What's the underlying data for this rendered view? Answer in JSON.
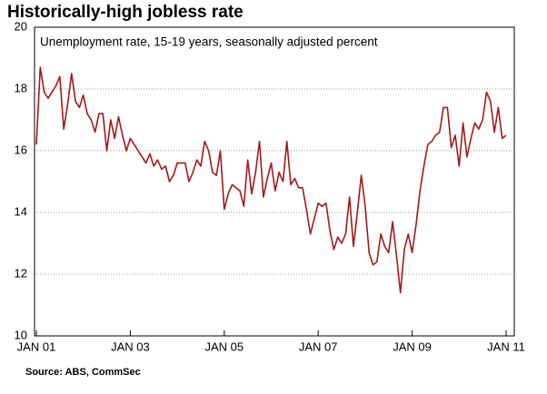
{
  "chart_data": {
    "type": "line",
    "title": "Historically-high jobless rate",
    "subtitle": "Unemployment rate, 15-19 years, seasonally adjusted percent",
    "source": "Source: ABS, CommSec",
    "x": [
      0,
      1,
      2,
      3,
      4,
      5,
      6,
      7,
      8,
      9,
      10,
      11,
      12,
      13,
      14,
      15,
      16,
      17,
      18,
      19,
      20,
      21,
      22,
      23,
      24,
      25,
      26,
      27,
      28,
      29,
      30,
      31,
      32,
      33,
      34,
      35,
      36,
      37,
      38,
      39,
      40,
      41,
      42,
      43,
      44,
      45,
      46,
      47,
      48,
      49,
      50,
      51,
      52,
      53,
      54,
      55,
      56,
      57,
      58,
      59,
      60,
      61,
      62,
      63,
      64,
      65,
      66,
      67,
      68,
      69,
      70,
      71,
      72,
      73,
      74,
      75,
      76,
      77,
      78,
      79,
      80,
      81,
      82,
      83,
      84,
      85,
      86,
      87,
      88,
      89,
      90,
      91,
      92,
      93,
      94,
      95,
      96,
      97,
      98,
      99,
      100,
      101,
      102,
      103,
      104,
      105,
      106,
      107,
      108,
      109,
      110,
      111,
      112,
      113,
      114,
      115,
      116,
      117,
      118,
      119,
      120
    ],
    "series": [
      {
        "name": "Unemployment rate, 15-19 years",
        "color": "#a3191c",
        "values": [
          16.2,
          18.7,
          17.9,
          17.7,
          17.9,
          18.1,
          18.4,
          16.7,
          17.5,
          18.5,
          17.6,
          17.4,
          17.8,
          17.2,
          17.0,
          16.6,
          17.2,
          17.2,
          16.0,
          17.0,
          16.4,
          17.1,
          16.5,
          16.0,
          16.4,
          16.2,
          16.0,
          15.8,
          15.6,
          15.9,
          15.5,
          15.7,
          15.4,
          15.5,
          15.0,
          15.2,
          15.6,
          15.6,
          15.6,
          15.0,
          15.3,
          15.7,
          15.5,
          16.3,
          16.0,
          15.3,
          15.2,
          16.0,
          14.1,
          14.6,
          14.9,
          14.8,
          14.7,
          14.2,
          15.7,
          14.6,
          15.3,
          16.3,
          14.5,
          15.1,
          15.6,
          14.7,
          15.3,
          15.0,
          16.3,
          14.9,
          15.1,
          14.8,
          14.8,
          14.1,
          13.3,
          13.8,
          14.3,
          14.2,
          14.3,
          13.4,
          12.8,
          13.2,
          13.0,
          13.3,
          14.5,
          12.9,
          14.0,
          15.2,
          14.2,
          12.7,
          12.3,
          12.4,
          13.3,
          12.9,
          12.7,
          13.7,
          12.6,
          11.4,
          12.8,
          13.3,
          12.7,
          13.6,
          14.7,
          15.5,
          16.2,
          16.3,
          16.5,
          16.6,
          17.4,
          17.4,
          16.1,
          16.5,
          15.5,
          16.9,
          15.8,
          16.4,
          16.9,
          16.7,
          17.0,
          17.9,
          17.6,
          16.6,
          17.4,
          16.4,
          16.5
        ]
      }
    ],
    "xlim": [
      0,
      120
    ],
    "xticks": [
      {
        "value": 0,
        "label": "JAN 01"
      },
      {
        "value": 24,
        "label": "JAN 03"
      },
      {
        "value": 48,
        "label": "JAN 05"
      },
      {
        "value": 72,
        "label": "JAN 07"
      },
      {
        "value": 96,
        "label": "JAN 09"
      },
      {
        "value": 120,
        "label": "JAN 11"
      }
    ],
    "ylim": [
      10,
      20
    ],
    "yticks": [
      10,
      12,
      14,
      16,
      18,
      20
    ],
    "grid": true
  }
}
